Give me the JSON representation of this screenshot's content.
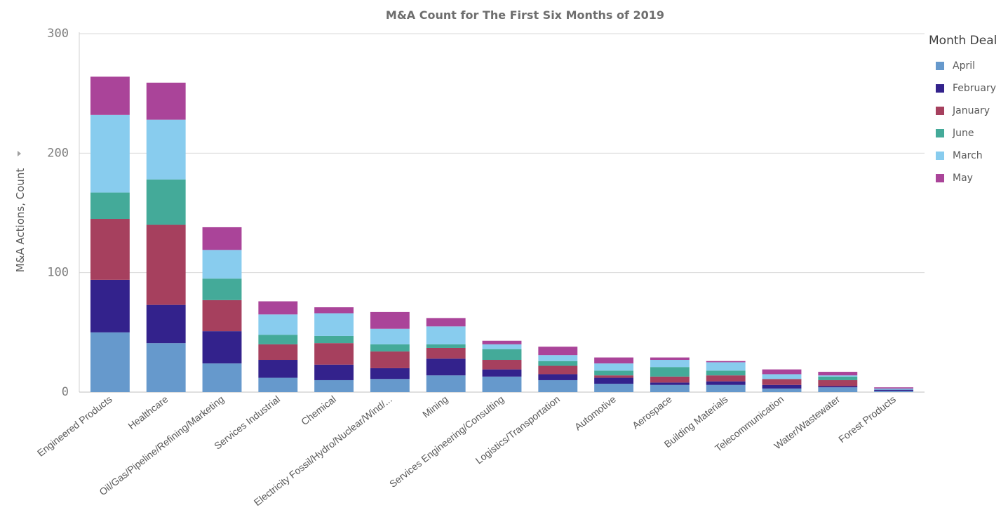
{
  "chart_data": {
    "type": "bar",
    "stacked": true,
    "title": "M&A Count for The First Six Months of 2019",
    "ylabel": "M&A Actions, Count",
    "xlabel": "",
    "ylim": [
      0,
      300
    ],
    "yticks": [
      0,
      100,
      200,
      300
    ],
    "grid": true,
    "legend": {
      "title": "Month Deal",
      "placement": "right"
    },
    "categories": [
      "Engineered Products",
      "Healthcare",
      "Oil/Gas/Pipeline/Refining/Marketing",
      "Services Industrial",
      "Chemical",
      "Electricity Fossil/Hydro/Nuclear/Wind/...",
      "Mining",
      "Services Engineering/Consulting",
      "Logistics/Transportation",
      "Automotive",
      "Aerospace",
      "Building Materials",
      "Telecommunication",
      "Water/Wastewater",
      "Forest Products"
    ],
    "series": [
      {
        "name": "April",
        "color": "#6699cc",
        "values": [
          50,
          41,
          24,
          12,
          10,
          11,
          14,
          13,
          10,
          7,
          6,
          6,
          3,
          4,
          1
        ]
      },
      {
        "name": "February",
        "color": "#33228c",
        "values": [
          44,
          32,
          27,
          15,
          13,
          9,
          14,
          6,
          5,
          5,
          2,
          3,
          3,
          1,
          1
        ]
      },
      {
        "name": "January",
        "color": "#a6405e",
        "values": [
          51,
          67,
          26,
          13,
          18,
          14,
          9,
          8,
          7,
          2,
          5,
          5,
          5,
          5,
          0
        ]
      },
      {
        "name": "June",
        "color": "#44aa99",
        "values": [
          22,
          38,
          18,
          8,
          6,
          6,
          3,
          9,
          4,
          4,
          8,
          4,
          0,
          3,
          0
        ]
      },
      {
        "name": "March",
        "color": "#88ccee",
        "values": [
          65,
          50,
          24,
          17,
          19,
          13,
          15,
          4,
          5,
          6,
          6,
          7,
          4,
          1,
          1
        ]
      },
      {
        "name": "May",
        "color": "#aa4499",
        "values": [
          32,
          31,
          19,
          11,
          5,
          14,
          7,
          3,
          7,
          5,
          2,
          1,
          4,
          3,
          1
        ]
      }
    ]
  }
}
